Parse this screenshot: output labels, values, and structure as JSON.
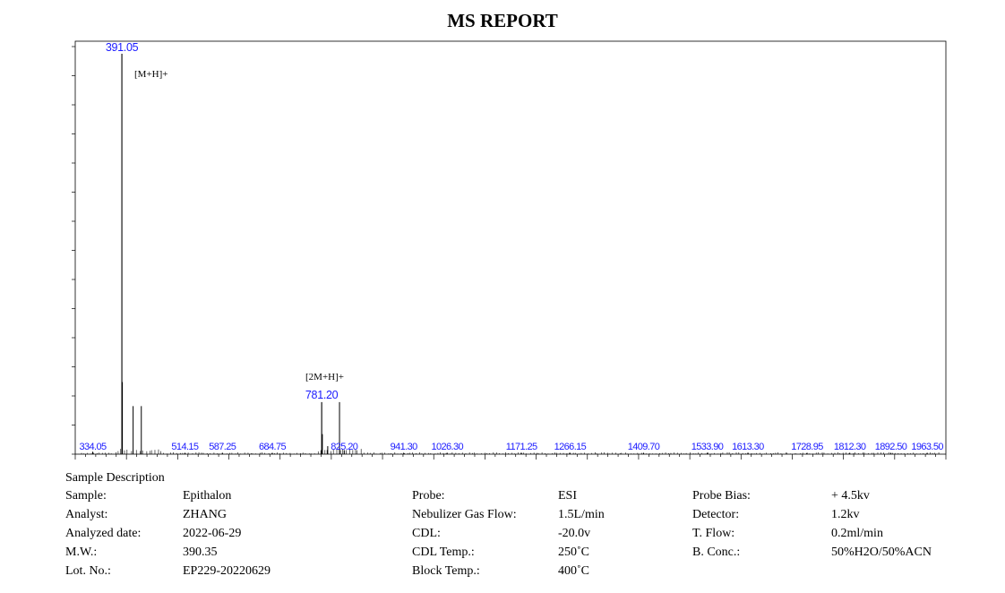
{
  "title": "MS REPORT",
  "chart_data": {
    "type": "bar",
    "title": "MS REPORT",
    "xlabel": "",
    "ylabel": "",
    "xlim": [
      300,
      2000
    ],
    "ylim": [
      0,
      100
    ],
    "grid": false,
    "peaks": [
      {
        "mz": 391.05,
        "intensity": 100
      },
      {
        "mz": 781.2,
        "intensity": 13
      },
      {
        "mz": 825.2,
        "intensity": 1
      },
      {
        "mz": 334.05,
        "intensity": 0.6
      },
      {
        "mz": 514.15,
        "intensity": 0.3
      },
      {
        "mz": 587.25,
        "intensity": 0.3
      },
      {
        "mz": 684.75,
        "intensity": 0.3
      },
      {
        "mz": 941.3,
        "intensity": 0.3
      },
      {
        "mz": 1026.3,
        "intensity": 0.3
      },
      {
        "mz": 1171.25,
        "intensity": 0.3
      },
      {
        "mz": 1266.15,
        "intensity": 0.3
      },
      {
        "mz": 1409.7,
        "intensity": 0.3
      },
      {
        "mz": 1533.9,
        "intensity": 0.3
      },
      {
        "mz": 1613.3,
        "intensity": 0.3
      },
      {
        "mz": 1728.95,
        "intensity": 0.3
      },
      {
        "mz": 1812.3,
        "intensity": 0.3
      },
      {
        "mz": 1892.5,
        "intensity": 0.3
      },
      {
        "mz": 1963.5,
        "intensity": 0.3
      }
    ],
    "minor_peaks": [
      {
        "mz": 392.0,
        "intensity": 18
      },
      {
        "mz": 413.0,
        "intensity": 12
      },
      {
        "mz": 429.0,
        "intensity": 12
      },
      {
        "mz": 816.0,
        "intensity": 13
      },
      {
        "mz": 782.5,
        "intensity": 5
      },
      {
        "mz": 793.0,
        "intensity": 2
      }
    ],
    "peak_labels": [
      "391.05",
      "781.20",
      "825.20",
      "334.05",
      "514.15",
      "587.25",
      "684.75",
      "941.30",
      "1026.30",
      "1171.25",
      "1266.15",
      "1409.70",
      "1533.90",
      "1613.30",
      "1728.95",
      "1812.30",
      "1892.50",
      "1963.50"
    ],
    "annotations": [
      "[M+H]+",
      "[2M+H]+"
    ]
  },
  "sample": {
    "heading": "Sample Description",
    "col1": [
      {
        "label": "Sample:",
        "value": "Epithalon"
      },
      {
        "label": "Analyst:",
        "value": "ZHANG"
      },
      {
        "label": "Analyzed date:",
        "value": "2022-06-29"
      },
      {
        "label": "M.W.:",
        "value": "390.35"
      },
      {
        "label": "Lot. No.:",
        "value": "EP229-20220629"
      }
    ],
    "col2": [
      {
        "label": "Probe:",
        "value": "ESI"
      },
      {
        "label": "Nebulizer Gas Flow:",
        "value": "1.5L/min"
      },
      {
        "label": "CDL:",
        "value": "-20.0v"
      },
      {
        "label": "CDL Temp.:",
        "value": "250˚C"
      },
      {
        "label": "Block Temp.:",
        "value": "400˚C"
      }
    ],
    "col3": [
      {
        "label": "Probe Bias:",
        "value": "+ 4.5kv"
      },
      {
        "label": "Detector:",
        "value": "1.2kv"
      },
      {
        "label": "T. Flow:",
        "value": "0.2ml/min"
      },
      {
        "label": "B. Conc.:",
        "value": "50%H2O/50%ACN"
      }
    ]
  }
}
